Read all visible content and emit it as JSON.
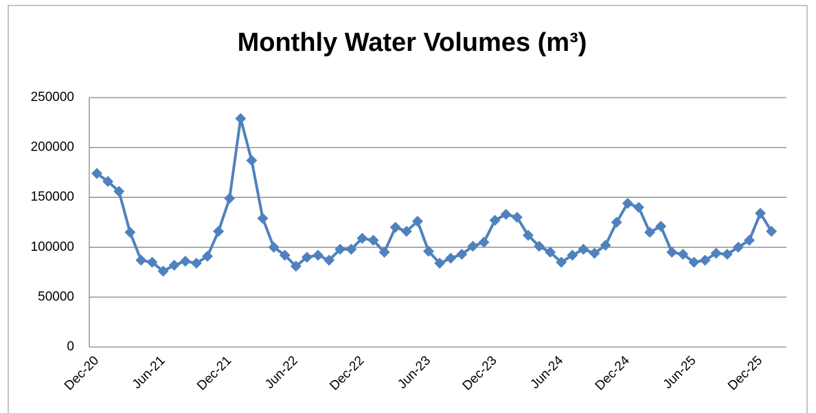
{
  "chart_data": {
    "type": "line",
    "title": "Monthly Water Volumes (m³)",
    "categories": [
      "Dec-20",
      null,
      null,
      null,
      null,
      null,
      "Jun-21",
      null,
      null,
      null,
      null,
      null,
      "Dec-21",
      null,
      null,
      null,
      null,
      null,
      "Jun-22",
      null,
      null,
      null,
      null,
      null,
      "Dec-22",
      null,
      null,
      null,
      null,
      null,
      "Jun-23",
      null,
      null,
      null,
      null,
      null,
      "Dec-23",
      null,
      null,
      null,
      null,
      null,
      "Jun-24",
      null,
      null,
      null,
      null,
      null,
      "Dec-24",
      null,
      null,
      null,
      null,
      null,
      "Jun-25",
      null,
      null,
      null,
      null,
      null,
      "Dec-25",
      null
    ],
    "values": [
      174000,
      166000,
      156000,
      115000,
      87000,
      85000,
      76000,
      82000,
      86000,
      84000,
      91000,
      116000,
      149000,
      229000,
      187000,
      129000,
      100000,
      92000,
      81000,
      90000,
      92000,
      87000,
      98000,
      98000,
      109000,
      107000,
      95000,
      120000,
      116000,
      126000,
      96000,
      84000,
      89000,
      93000,
      101000,
      105000,
      127000,
      133000,
      130000,
      112000,
      101000,
      95000,
      85000,
      92000,
      98000,
      94000,
      102000,
      125000,
      144000,
      140000,
      115000,
      121000,
      95000,
      93000,
      85000,
      87000,
      94000,
      93000,
      100000,
      107000,
      134000,
      116000
    ],
    "color": "#4f81bd",
    "ylim": [
      0,
      250000
    ],
    "yticks": [
      0,
      50000,
      100000,
      150000,
      200000,
      250000
    ],
    "grid": true
  }
}
